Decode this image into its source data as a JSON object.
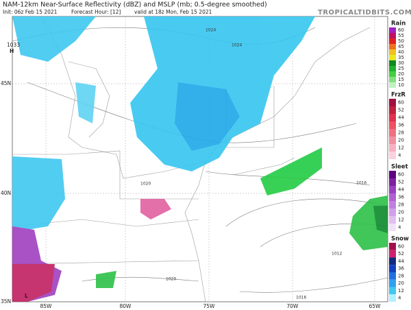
{
  "header": {
    "title": "NAM-12km Near-Surface Reflectivity (dBZ) and MSLP (mb; 0.5-degree smoothed)",
    "init": "Init: 06z Feb 15 2021",
    "forecast": "Forecast Hour: [12]",
    "valid": "valid at 18z Mon, Feb 15 2021",
    "site": "TROPICALTIDBITS.COM"
  },
  "map": {
    "lon_labels": [
      "85W",
      "80W",
      "75W",
      "70W",
      "65W"
    ],
    "lat_labels": [
      "45N",
      "40N",
      "35N"
    ],
    "high_pressure": "1033",
    "high_symbol": "H",
    "low_symbol": "L",
    "isobar_labels": [
      "1024",
      "1024",
      "1020",
      "1016",
      "1012",
      "1020",
      "1016"
    ]
  },
  "legends": [
    {
      "title": "Rain",
      "labels": [
        "60",
        "55",
        "50",
        "45",
        "40",
        "35",
        "30",
        "25",
        "20",
        "15",
        "10"
      ]
    },
    {
      "title": "FrzR",
      "labels": [
        "60",
        "52",
        "44",
        "36",
        "28",
        "20",
        "12",
        "4"
      ]
    },
    {
      "title": "Sleet",
      "labels": [
        "60",
        "52",
        "44",
        "36",
        "28",
        "20",
        "12",
        "4"
      ]
    },
    {
      "title": "Snow",
      "labels": [
        "60",
        "52",
        "44",
        "36",
        "28",
        "20",
        "12",
        "4"
      ]
    }
  ]
}
